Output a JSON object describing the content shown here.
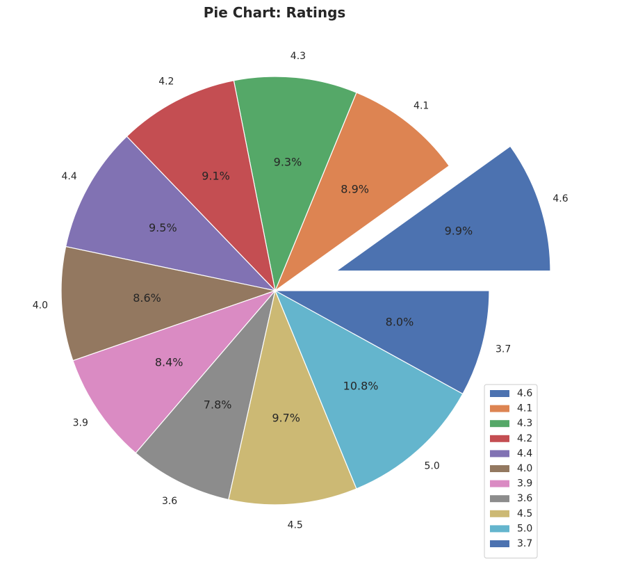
{
  "chart_data": {
    "type": "pie",
    "title": "Pie Chart: Ratings",
    "categories": [
      "4.6",
      "4.1",
      "4.3",
      "4.2",
      "4.4",
      "4.0",
      "3.9",
      "3.6",
      "4.5",
      "5.0",
      "3.7"
    ],
    "values": [
      9.9,
      8.9,
      9.3,
      9.1,
      9.5,
      8.6,
      8.4,
      7.8,
      9.7,
      10.8,
      8.0
    ],
    "percent_labels": [
      "9.9%",
      "8.9%",
      "9.3%",
      "9.1%",
      "9.5%",
      "8.6%",
      "8.4%",
      "7.8%",
      "9.7%",
      "10.8%",
      "8.0%"
    ],
    "colors": [
      "#4c72b0",
      "#dd8452",
      "#55a868",
      "#c44e52",
      "#8172b3",
      "#937860",
      "#da8bc3",
      "#8c8c8c",
      "#ccb974",
      "#64b5cd",
      "#4c72b0"
    ],
    "exploded": [
      "4.6"
    ],
    "legend": {
      "placement": "lower-right",
      "entries": [
        "4.6",
        "4.1",
        "4.3",
        "4.2",
        "4.4",
        "4.0",
        "3.9",
        "3.6",
        "4.5",
        "5.0",
        "3.7"
      ]
    }
  }
}
